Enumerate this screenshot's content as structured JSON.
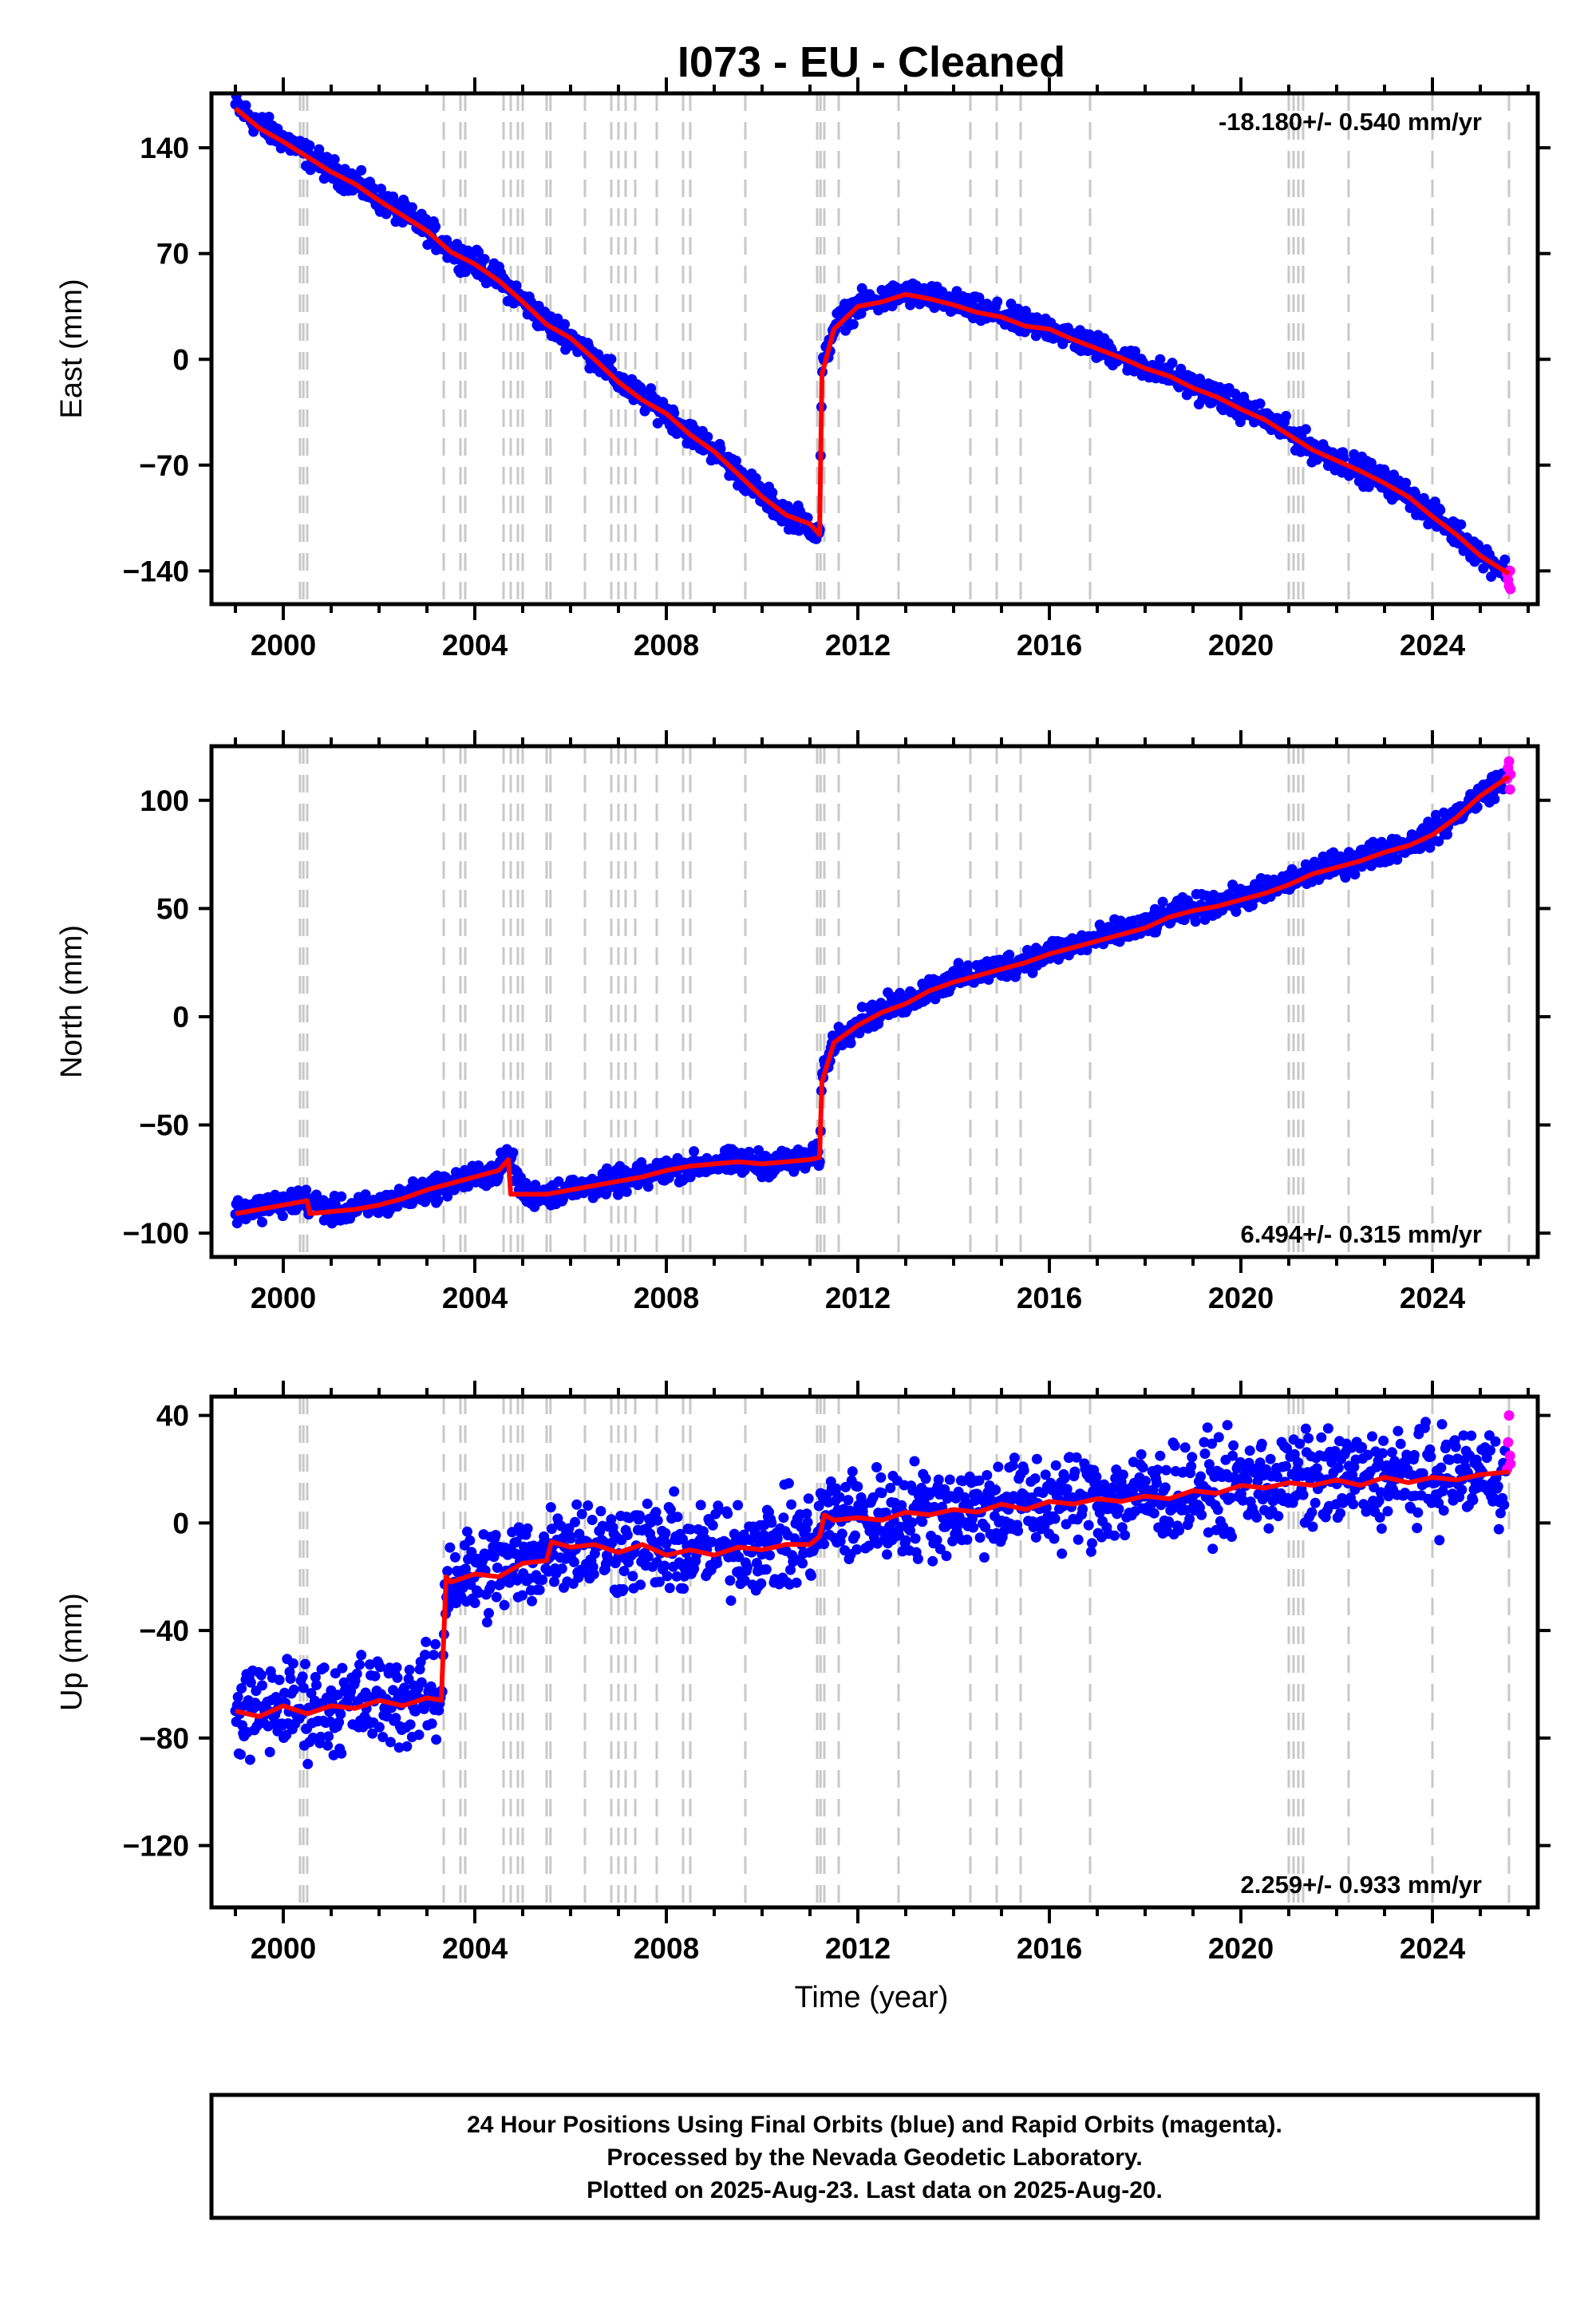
{
  "figure": {
    "title": "I073  - EU - Cleaned",
    "xlabel": "Time (year)",
    "footer": [
      "24 Hour Positions Using Final Orbits (blue) and Rapid Orbits (magenta).",
      "Processed by the Nevada Geodetic Laboratory.",
      "Plotted on 2025-Aug-23. Last data on 2025-Aug-20."
    ]
  },
  "colors": {
    "final_orbits": "#0000ff",
    "rapid_orbits": "#ff00ff",
    "model": "#ff0000",
    "event_lines": "#c8c8c8",
    "frame": "#000000"
  },
  "chart_data": [
    {
      "type": "scatter",
      "component": "East",
      "ylabel": "East (mm)",
      "rate_label": "-18.180+/- 0.540 mm/yr",
      "rate_position": "top-right",
      "xlim": [
        1998.5,
        2026.2
      ],
      "ylim": [
        -162,
        176
      ],
      "xticks": [
        2000,
        2004,
        2008,
        2012,
        2016,
        2020,
        2024
      ],
      "xtick_labels": [
        "2000",
        "2004",
        "2008",
        "2012",
        "2016",
        "2020",
        "2024"
      ],
      "yticks": [
        140,
        70,
        0,
        -70,
        -140
      ],
      "ytick_labels": [
        "140",
        "70",
        "0",
        "−70",
        "−140"
      ],
      "grid": false,
      "event_lines": [
        2000.35,
        2000.42,
        2000.5,
        2003.35,
        2003.7,
        2003.8,
        2004.6,
        2004.75,
        2004.9,
        2005.0,
        2005.5,
        2005.58,
        2006.3,
        2006.85,
        2007.0,
        2007.15,
        2007.35,
        2007.8,
        2008.35,
        2008.5,
        2009.65,
        2011.15,
        2011.22,
        2011.3,
        2011.6,
        2012.85,
        2014.35,
        2014.9,
        2015.4,
        2016.85,
        2021.0,
        2021.1,
        2021.2,
        2021.3,
        2022.25,
        2024.0,
        2025.6
      ],
      "series": [
        {
          "name": "Final Orbits",
          "color": "#0000ff",
          "x": [
            1999.0,
            1999.5,
            2000.0,
            2000.6,
            2001.0,
            2001.5,
            2002.0,
            2002.5,
            2003.0,
            2003.5,
            2004.0,
            2004.5,
            2005.0,
            2005.5,
            2006.0,
            2006.5,
            2007.0,
            2007.5,
            2008.0,
            2008.5,
            2009.0,
            2009.5,
            2010.0,
            2010.5,
            2011.0,
            2011.2,
            2011.25,
            2011.5,
            2012.0,
            2012.5,
            2013.0,
            2013.5,
            2014.0,
            2014.5,
            2015.0,
            2015.5,
            2016.0,
            2016.5,
            2017.0,
            2017.5,
            2018.0,
            2018.5,
            2019.0,
            2019.5,
            2020.0,
            2020.5,
            2021.0,
            2021.5,
            2022.0,
            2022.5,
            2023.0,
            2023.5,
            2024.0,
            2024.5,
            2025.0,
            2025.55
          ],
          "y": [
            168,
            155,
            146,
            133,
            125,
            117,
            106,
            96,
            86,
            72,
            64,
            53,
            39,
            24,
            15,
            1,
            -14,
            -26,
            -35,
            -49,
            -60,
            -75,
            -90,
            -102,
            -109,
            -117,
            -8,
            22,
            36,
            39,
            44,
            41,
            37,
            32,
            29,
            23,
            21,
            14,
            8,
            2,
            -5,
            -10,
            -18,
            -24,
            -32,
            -39,
            -49,
            -59,
            -66,
            -73,
            -81,
            -90,
            -103,
            -115,
            -129,
            -140
          ]
        },
        {
          "name": "Rapid Orbits",
          "color": "#ff00ff",
          "x": [
            2025.56,
            2025.58,
            2025.6,
            2025.62,
            2025.63
          ],
          "y": [
            -142,
            -146,
            -150,
            -140,
            -152
          ]
        },
        {
          "name": "Model",
          "color": "#ff0000",
          "x": [
            1999.0,
            1999.5,
            2000.0,
            2000.6,
            2001.0,
            2001.5,
            2002.0,
            2002.5,
            2003.0,
            2003.5,
            2004.0,
            2004.5,
            2005.0,
            2005.5,
            2006.0,
            2006.5,
            2007.0,
            2007.5,
            2008.0,
            2008.5,
            2009.0,
            2009.5,
            2010.0,
            2010.5,
            2011.0,
            2011.2,
            2011.25,
            2011.5,
            2012.0,
            2012.5,
            2013.0,
            2013.5,
            2014.0,
            2014.5,
            2015.0,
            2015.5,
            2016.0,
            2016.5,
            2017.0,
            2017.5,
            2018.0,
            2018.5,
            2019.0,
            2019.5,
            2020.0,
            2020.5,
            2021.0,
            2021.5,
            2022.0,
            2022.5,
            2023.0,
            2023.5,
            2024.0,
            2024.5,
            2025.0,
            2025.6
          ],
          "y": [
            166,
            153,
            144,
            132,
            124,
            116,
            105,
            95,
            85,
            71,
            63,
            52,
            38,
            23,
            14,
            0,
            -15,
            -27,
            -36,
            -50,
            -61,
            -76,
            -91,
            -103,
            -109,
            -116,
            -10,
            20,
            35,
            38,
            43,
            40,
            36,
            31,
            28,
            22,
            20,
            13,
            7,
            1,
            -6,
            -11,
            -19,
            -25,
            -33,
            -40,
            -50,
            -60,
            -67,
            -74,
            -82,
            -91,
            -104,
            -116,
            -130,
            -142
          ]
        }
      ]
    },
    {
      "type": "scatter",
      "component": "North",
      "ylabel": "North (mm)",
      "rate_label": "6.494+/- 0.315 mm/yr",
      "rate_position": "bottom-right",
      "xlim": [
        1998.5,
        2026.2
      ],
      "ylim": [
        -111,
        125
      ],
      "xticks": [
        2000,
        2004,
        2008,
        2012,
        2016,
        2020,
        2024
      ],
      "xtick_labels": [
        "2000",
        "2004",
        "2008",
        "2012",
        "2016",
        "2020",
        "2024"
      ],
      "yticks": [
        100,
        50,
        0,
        -50,
        -100
      ],
      "ytick_labels": [
        "100",
        "50",
        "0",
        "−50",
        "−100"
      ],
      "grid": false,
      "event_lines": [
        2000.35,
        2000.42,
        2000.5,
        2003.35,
        2003.7,
        2003.8,
        2004.6,
        2004.75,
        2004.9,
        2005.0,
        2005.5,
        2005.58,
        2006.3,
        2006.85,
        2007.0,
        2007.15,
        2007.35,
        2007.8,
        2008.35,
        2008.5,
        2009.65,
        2011.15,
        2011.22,
        2011.3,
        2011.6,
        2012.85,
        2014.35,
        2014.9,
        2015.4,
        2016.85,
        2021.0,
        2021.1,
        2021.2,
        2021.3,
        2022.25,
        2024.0,
        2025.6
      ],
      "series": [
        {
          "name": "Final Orbits",
          "color": "#0000ff",
          "x": [
            1999.0,
            1999.5,
            2000.0,
            2000.5,
            2001.0,
            2001.5,
            2002.0,
            2002.5,
            2003.0,
            2003.5,
            2004.0,
            2004.5,
            2004.7,
            2005.0,
            2005.5,
            2006.0,
            2006.5,
            2007.0,
            2007.5,
            2008.0,
            2008.5,
            2009.0,
            2009.5,
            2010.0,
            2010.5,
            2011.0,
            2011.2,
            2011.25,
            2011.5,
            2012.0,
            2012.5,
            2013.0,
            2013.5,
            2014.0,
            2014.5,
            2015.0,
            2015.5,
            2016.0,
            2016.5,
            2017.0,
            2017.5,
            2018.0,
            2018.5,
            2019.0,
            2019.5,
            2020.0,
            2020.5,
            2021.0,
            2021.5,
            2022.0,
            2022.5,
            2023.0,
            2023.5,
            2024.0,
            2024.5,
            2025.0,
            2025.55
          ],
          "y": [
            -90,
            -88,
            -86,
            -85,
            -90,
            -89,
            -87,
            -84,
            -80,
            -77,
            -74,
            -71,
            -63,
            -82,
            -82,
            -80,
            -78,
            -76,
            -74,
            -71,
            -69,
            -68,
            -67,
            -68,
            -67,
            -66,
            -65,
            -28,
            -11,
            -3,
            3,
            7,
            13,
            17,
            20,
            23,
            26,
            30,
            33,
            36,
            39,
            42,
            47,
            50,
            52,
            55,
            58,
            62,
            67,
            70,
            73,
            77,
            80,
            85,
            93,
            103,
            110
          ]
        },
        {
          "name": "Rapid Orbits",
          "color": "#ff00ff",
          "x": [
            2025.56,
            2025.58,
            2025.6,
            2025.62,
            2025.63
          ],
          "y": [
            110,
            115,
            118,
            105,
            112
          ]
        },
        {
          "name": "Model",
          "color": "#ff0000",
          "x": [
            1999.0,
            1999.5,
            2000.0,
            2000.5,
            2000.55,
            2001.0,
            2001.5,
            2002.0,
            2002.5,
            2003.0,
            2003.5,
            2004.0,
            2004.5,
            2004.7,
            2004.75,
            2005.0,
            2005.5,
            2006.0,
            2006.5,
            2007.0,
            2007.5,
            2008.0,
            2008.5,
            2009.0,
            2009.5,
            2010.0,
            2010.5,
            2011.0,
            2011.2,
            2011.25,
            2011.5,
            2012.0,
            2012.5,
            2013.0,
            2013.5,
            2014.0,
            2014.5,
            2015.0,
            2015.5,
            2016.0,
            2016.5,
            2017.0,
            2017.5,
            2018.0,
            2018.5,
            2019.0,
            2019.5,
            2020.0,
            2020.5,
            2021.0,
            2021.5,
            2022.0,
            2022.5,
            2023.0,
            2023.5,
            2024.0,
            2024.5,
            2025.0,
            2025.6
          ],
          "y": [
            -91,
            -89,
            -87,
            -85,
            -91,
            -90,
            -89,
            -87,
            -84,
            -80,
            -77,
            -74,
            -71,
            -66,
            -82,
            -82,
            -82,
            -80,
            -78,
            -76,
            -74,
            -71,
            -69,
            -68,
            -67,
            -68,
            -67,
            -66,
            -65,
            -30,
            -12,
            -4,
            2,
            6,
            12,
            16,
            19,
            22,
            25,
            29,
            32,
            35,
            38,
            41,
            46,
            49,
            51,
            54,
            57,
            61,
            66,
            69,
            72,
            76,
            79,
            84,
            92,
            102,
            111
          ]
        }
      ]
    },
    {
      "type": "scatter",
      "component": "Up",
      "ylabel": "Up (mm)",
      "rate_label": "2.259+/- 0.933 mm/yr",
      "rate_position": "bottom-right",
      "xlim": [
        1998.5,
        2026.2
      ],
      "ylim": [
        -143,
        47
      ],
      "xticks": [
        2000,
        2004,
        2008,
        2012,
        2016,
        2020,
        2024
      ],
      "xtick_labels": [
        "2000",
        "2004",
        "2008",
        "2012",
        "2016",
        "2020",
        "2024"
      ],
      "yticks": [
        40,
        0,
        -40,
        -80,
        -120
      ],
      "ytick_labels": [
        "40",
        "0",
        "−40",
        "−80",
        "−120"
      ],
      "grid": false,
      "event_lines": [
        2000.35,
        2000.42,
        2000.5,
        2003.35,
        2003.7,
        2003.8,
        2004.6,
        2004.75,
        2004.9,
        2005.0,
        2005.5,
        2005.58,
        2006.3,
        2006.85,
        2007.0,
        2007.15,
        2007.35,
        2007.8,
        2008.35,
        2008.5,
        2009.65,
        2011.15,
        2011.22,
        2011.3,
        2011.6,
        2012.85,
        2014.35,
        2014.9,
        2015.4,
        2016.85,
        2021.0,
        2021.1,
        2021.2,
        2021.3,
        2022.25,
        2024.0,
        2025.6
      ],
      "series": [
        {
          "name": "Final Orbits",
          "color": "#0000ff",
          "x": [
            1999.0,
            1999.5,
            2000.0,
            2000.5,
            2001.0,
            2001.5,
            2002.0,
            2002.5,
            2003.0,
            2003.3,
            2003.4,
            2003.5,
            2004.0,
            2004.5,
            2005.0,
            2005.5,
            2005.6,
            2006.0,
            2006.5,
            2007.0,
            2007.5,
            2008.0,
            2008.5,
            2009.0,
            2009.5,
            2010.0,
            2010.5,
            2011.0,
            2011.2,
            2011.3,
            2011.5,
            2012.0,
            2012.5,
            2013.0,
            2013.5,
            2014.0,
            2014.5,
            2015.0,
            2015.5,
            2016.0,
            2016.5,
            2017.0,
            2017.5,
            2018.0,
            2018.5,
            2019.0,
            2019.5,
            2020.0,
            2020.5,
            2021.0,
            2021.5,
            2022.0,
            2022.5,
            2023.0,
            2023.5,
            2024.0,
            2024.5,
            2025.0,
            2025.55
          ],
          "y": [
            -70,
            -70,
            -68,
            -69,
            -68,
            -67,
            -66,
            -66,
            -65,
            -65,
            -20,
            -20,
            -19,
            -17,
            -15,
            -12,
            -7,
            -7,
            -8,
            -9,
            -8,
            -10,
            -10,
            -10,
            -9,
            -8,
            -8,
            -6,
            -5,
            3,
            3,
            2,
            3,
            4,
            5,
            5,
            6,
            7,
            7,
            8,
            9,
            9,
            10,
            10,
            11,
            12,
            13,
            14,
            15,
            15,
            16,
            16,
            16,
            17,
            17,
            17,
            18,
            18,
            19
          ]
        },
        {
          "name": "Rapid Orbits",
          "color": "#ff00ff",
          "x": [
            2025.56,
            2025.58,
            2025.6,
            2025.62,
            2025.63
          ],
          "y": [
            20,
            30,
            40,
            25,
            22
          ]
        },
        {
          "name": "Model",
          "color": "#ff0000",
          "x": [
            1999.0,
            1999.5,
            2000.0,
            2000.5,
            2001.0,
            2001.5,
            2002.0,
            2002.5,
            2003.0,
            2003.3,
            2003.4,
            2003.5,
            2004.0,
            2004.5,
            2005.0,
            2005.5,
            2005.6,
            2006.0,
            2006.5,
            2007.0,
            2007.5,
            2008.0,
            2008.5,
            2009.0,
            2009.5,
            2010.0,
            2010.5,
            2011.0,
            2011.2,
            2011.3,
            2011.5,
            2012.0,
            2012.5,
            2013.0,
            2013.5,
            2014.0,
            2014.5,
            2015.0,
            2015.5,
            2016.0,
            2016.5,
            2017.0,
            2017.5,
            2018.0,
            2018.5,
            2019.0,
            2019.5,
            2020.0,
            2020.5,
            2021.0,
            2021.5,
            2022.0,
            2022.5,
            2023.0,
            2023.5,
            2024.0,
            2024.5,
            2025.0,
            2025.6
          ],
          "y": [
            -70,
            -72,
            -68,
            -71,
            -68,
            -69,
            -66,
            -68,
            -65,
            -66,
            -20,
            -22,
            -19,
            -20,
            -15,
            -14,
            -7,
            -9,
            -8,
            -11,
            -8,
            -12,
            -10,
            -12,
            -9,
            -10,
            -8,
            -8,
            -5,
            3,
            1,
            2,
            1,
            4,
            3,
            5,
            4,
            7,
            5,
            8,
            7,
            9,
            8,
            10,
            9,
            12,
            11,
            14,
            13,
            15,
            14,
            16,
            14,
            17,
            15,
            17,
            16,
            18,
            19
          ]
        }
      ]
    }
  ]
}
